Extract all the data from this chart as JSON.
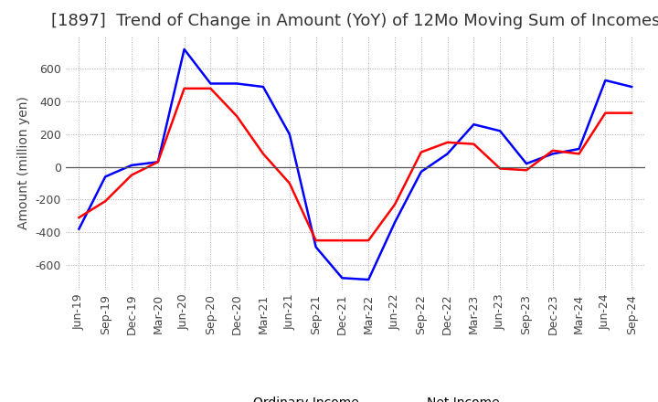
{
  "title": "[1897]  Trend of Change in Amount (YoY) of 12Mo Moving Sum of Incomes",
  "ylabel": "Amount (million yen)",
  "x_labels": [
    "Jun-19",
    "Sep-19",
    "Dec-19",
    "Mar-20",
    "Jun-20",
    "Sep-20",
    "Dec-20",
    "Mar-21",
    "Jun-21",
    "Sep-21",
    "Dec-21",
    "Mar-22",
    "Jun-22",
    "Sep-22",
    "Dec-22",
    "Mar-23",
    "Jun-23",
    "Sep-23",
    "Dec-23",
    "Mar-24",
    "Jun-24",
    "Sep-24"
  ],
  "ordinary_income": [
    -380,
    -60,
    10,
    30,
    720,
    510,
    510,
    490,
    200,
    -490,
    -680,
    -690,
    -340,
    -30,
    80,
    260,
    220,
    20,
    80,
    110,
    530,
    490
  ],
  "net_income": [
    -310,
    -210,
    -50,
    30,
    480,
    480,
    310,
    80,
    -100,
    -450,
    -450,
    -450,
    -230,
    90,
    150,
    140,
    -10,
    -20,
    100,
    80,
    330,
    330
  ],
  "ordinary_color": "#0000ff",
  "net_color": "#ff0000",
  "background_color": "#ffffff",
  "grid_color": "#aaaaaa",
  "ylim": [
    -750,
    800
  ],
  "yticks": [
    -600,
    -400,
    -200,
    0,
    200,
    400,
    600
  ],
  "title_fontsize": 13,
  "label_fontsize": 10,
  "tick_fontsize": 9
}
